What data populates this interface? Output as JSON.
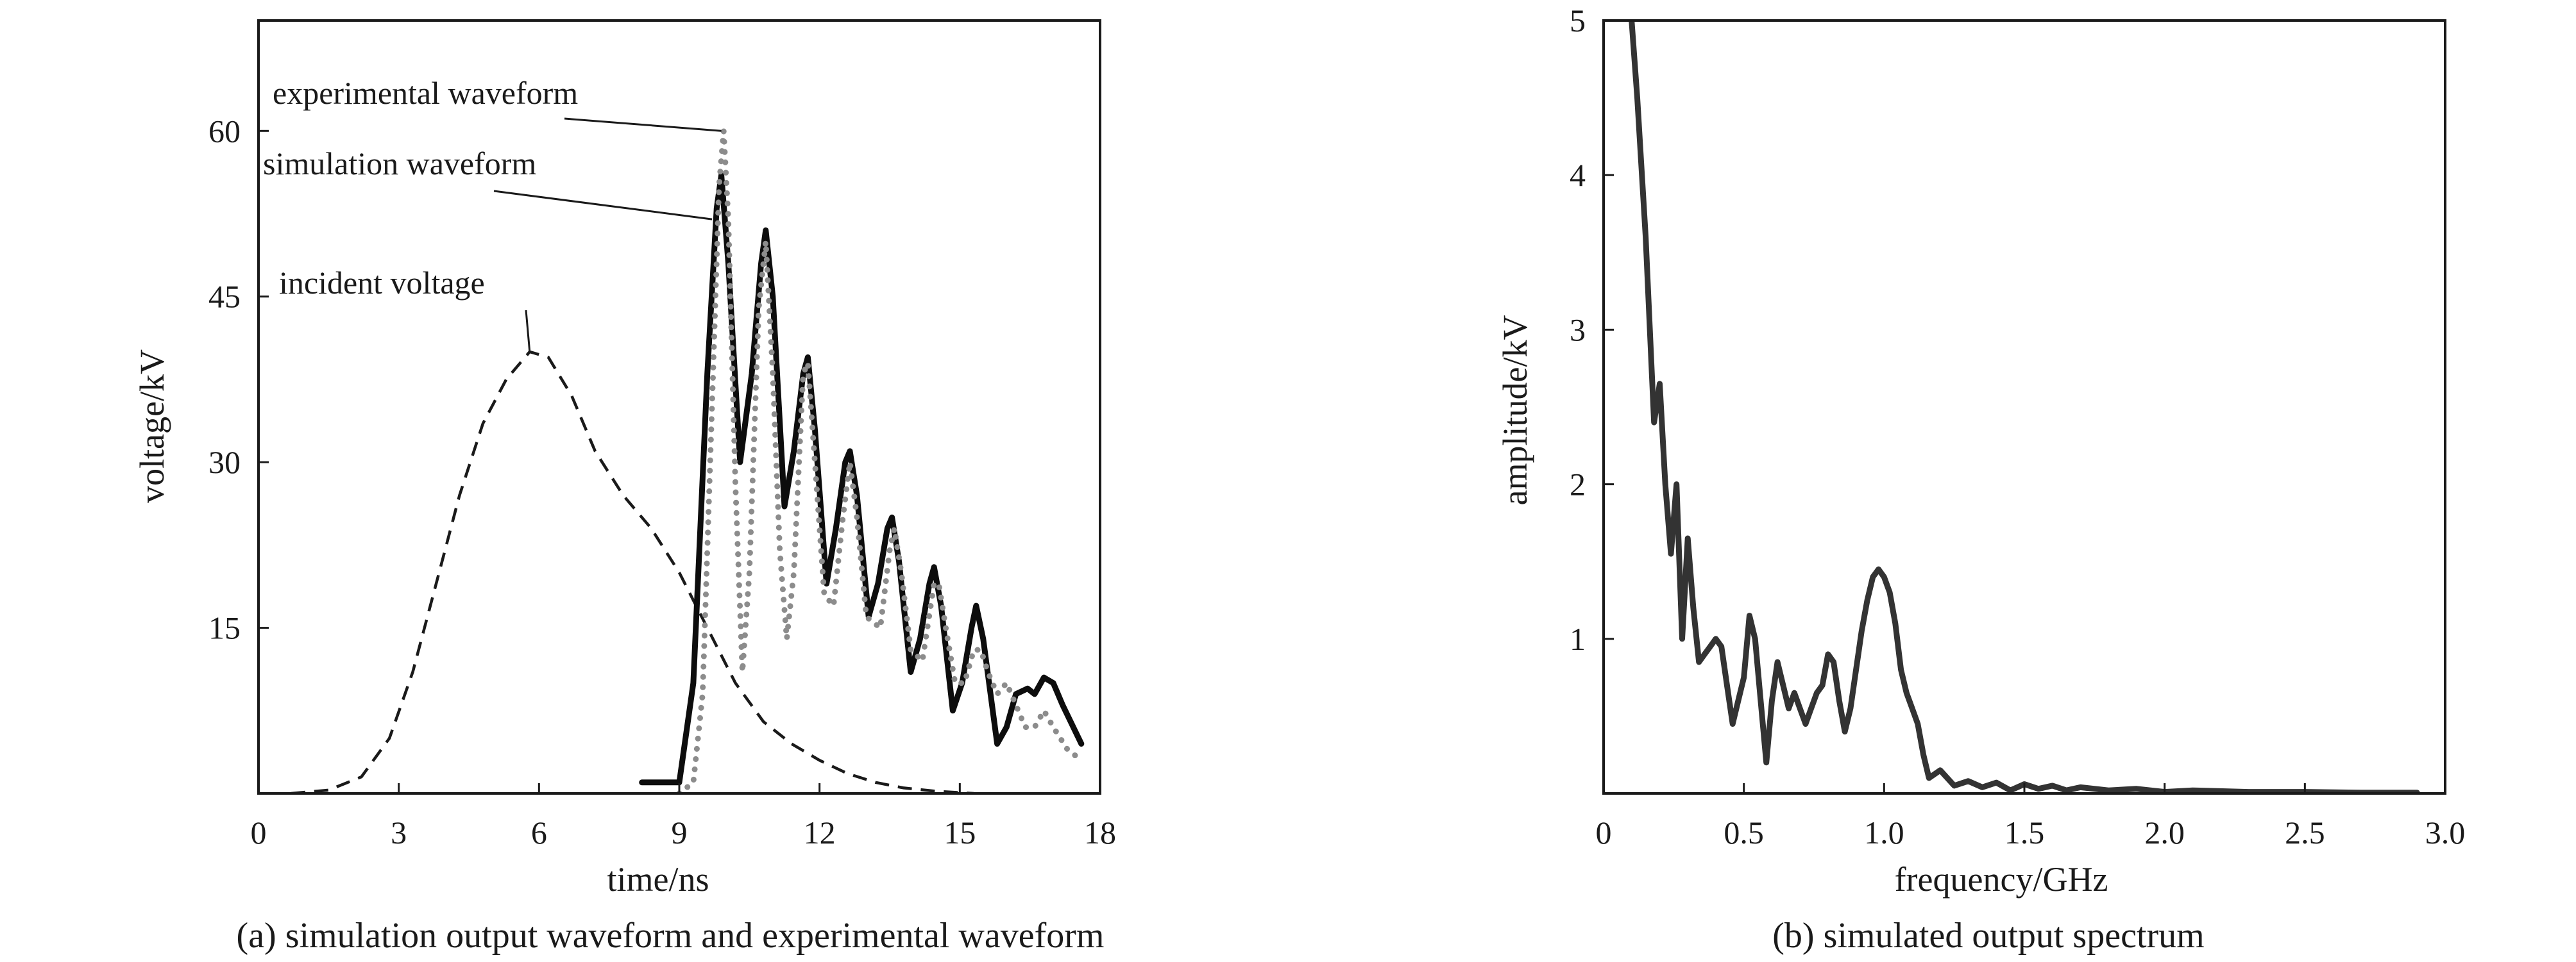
{
  "chart_data": [
    {
      "type": "line",
      "caption": "(a) simulation output waveform and experimental waveform",
      "xlabel": "time/ns",
      "ylabel": "voltage/kV",
      "xlim": [
        0,
        18
      ],
      "ylim": [
        0,
        70
      ],
      "x_ticks": [
        0,
        3,
        6,
        9,
        12,
        15,
        18
      ],
      "y_ticks": [
        15,
        30,
        45,
        60
      ],
      "x_tick_labels": [
        "0",
        "3",
        "6",
        "9",
        "12",
        "15",
        "18"
      ],
      "y_tick_labels": [
        "15",
        "30",
        "45",
        "60"
      ],
      "annotations": [
        {
          "text": "experimental waveform",
          "target_series": "experimental waveform",
          "target": [
            9.9,
            60
          ]
        },
        {
          "text": "simulation waveform",
          "target_series": "simulation waveform",
          "target": [
            9.7,
            52
          ]
        },
        {
          "text": "incident voltage",
          "target_series": "incident voltage",
          "target": [
            5.8,
            40
          ]
        }
      ],
      "series": [
        {
          "name": "incident voltage",
          "style": "dashed",
          "color": "#1a1a1a",
          "points": [
            [
              0.7,
              0
            ],
            [
              1.5,
              0.3
            ],
            [
              2.2,
              1.5
            ],
            [
              2.8,
              5
            ],
            [
              3.3,
              11
            ],
            [
              3.8,
              19
            ],
            [
              4.3,
              27
            ],
            [
              4.8,
              33.5
            ],
            [
              5.3,
              37.5
            ],
            [
              5.8,
              40
            ],
            [
              6.2,
              39.5
            ],
            [
              6.7,
              36
            ],
            [
              7.2,
              31
            ],
            [
              7.8,
              27
            ],
            [
              8.4,
              24
            ],
            [
              9.0,
              20
            ],
            [
              9.6,
              15
            ],
            [
              10.2,
              10
            ],
            [
              10.8,
              6.5
            ],
            [
              11.4,
              4.5
            ],
            [
              12.0,
              3
            ],
            [
              12.6,
              1.8
            ],
            [
              13.2,
              1
            ],
            [
              13.8,
              0.5
            ],
            [
              14.5,
              0.2
            ],
            [
              15.3,
              0
            ]
          ]
        },
        {
          "name": "simulation waveform",
          "style": "solid",
          "color": "#0d0d0d",
          "points": [
            [
              8.2,
              1
            ],
            [
              9.0,
              1
            ],
            [
              9.3,
              10
            ],
            [
              9.6,
              38
            ],
            [
              9.8,
              53
            ],
            [
              9.9,
              56
            ],
            [
              10.05,
              48
            ],
            [
              10.3,
              30
            ],
            [
              10.55,
              38
            ],
            [
              10.75,
              48
            ],
            [
              10.85,
              51
            ],
            [
              11.0,
              45
            ],
            [
              11.25,
              26
            ],
            [
              11.45,
              31
            ],
            [
              11.65,
              38
            ],
            [
              11.75,
              39.5
            ],
            [
              11.9,
              33
            ],
            [
              12.15,
              19
            ],
            [
              12.35,
              24
            ],
            [
              12.55,
              30
            ],
            [
              12.65,
              31
            ],
            [
              12.8,
              27
            ],
            [
              13.05,
              16
            ],
            [
              13.25,
              19
            ],
            [
              13.45,
              24
            ],
            [
              13.55,
              25
            ],
            [
              13.7,
              21
            ],
            [
              13.95,
              11
            ],
            [
              14.15,
              14
            ],
            [
              14.35,
              19
            ],
            [
              14.45,
              20.5
            ],
            [
              14.6,
              17
            ],
            [
              14.85,
              7.5
            ],
            [
              15.05,
              10
            ],
            [
              15.25,
              15
            ],
            [
              15.35,
              17
            ],
            [
              15.5,
              14
            ],
            [
              15.8,
              4.5
            ],
            [
              16.0,
              6
            ],
            [
              16.2,
              9
            ],
            [
              16.45,
              9.5
            ],
            [
              16.6,
              9
            ],
            [
              16.8,
              10.5
            ],
            [
              17.0,
              10
            ],
            [
              17.2,
              8
            ],
            [
              17.6,
              4.5
            ]
          ]
        },
        {
          "name": "experimental waveform",
          "style": "dotted",
          "color": "#8c8c8c",
          "points": [
            [
              9.0,
              0
            ],
            [
              9.3,
              1
            ],
            [
              9.5,
              9
            ],
            [
              9.7,
              35
            ],
            [
              9.85,
              55
            ],
            [
              9.95,
              60
            ],
            [
              10.05,
              52
            ],
            [
              10.2,
              28
            ],
            [
              10.35,
              11
            ],
            [
              10.5,
              20
            ],
            [
              10.7,
              44
            ],
            [
              10.85,
              50
            ],
            [
              11.0,
              38
            ],
            [
              11.15,
              22
            ],
            [
              11.3,
              14
            ],
            [
              11.45,
              20
            ],
            [
              11.65,
              38
            ],
            [
              11.75,
              39
            ],
            [
              11.9,
              30
            ],
            [
              12.1,
              18
            ],
            [
              12.3,
              17
            ],
            [
              12.5,
              25
            ],
            [
              12.65,
              30
            ],
            [
              12.8,
              25
            ],
            [
              13.0,
              16
            ],
            [
              13.3,
              15
            ],
            [
              13.5,
              22
            ],
            [
              13.6,
              24
            ],
            [
              13.75,
              20
            ],
            [
              13.95,
              13
            ],
            [
              14.2,
              12
            ],
            [
              14.45,
              19
            ],
            [
              14.55,
              19
            ],
            [
              14.7,
              15
            ],
            [
              14.9,
              10
            ],
            [
              15.1,
              10
            ],
            [
              15.3,
              13
            ],
            [
              15.45,
              13
            ],
            [
              15.6,
              11
            ],
            [
              15.8,
              9
            ],
            [
              16.0,
              10
            ],
            [
              16.2,
              8
            ],
            [
              16.4,
              6
            ],
            [
              16.6,
              6
            ],
            [
              16.8,
              7.5
            ],
            [
              17.0,
              6
            ],
            [
              17.3,
              4
            ],
            [
              17.6,
              3
            ]
          ]
        }
      ]
    },
    {
      "type": "line",
      "caption": "(b) simulated output spectrum",
      "xlabel": "frequency/GHz",
      "ylabel": "amplitude/kV",
      "xlim": [
        0,
        3.0
      ],
      "ylim": [
        0,
        5
      ],
      "x_ticks": [
        0,
        0.5,
        1.0,
        1.5,
        2.0,
        2.5,
        3.0
      ],
      "y_ticks": [
        1,
        2,
        3,
        4,
        5
      ],
      "x_tick_labels": [
        "0",
        "0.5",
        "1.0",
        "1.5",
        "2.0",
        "2.5",
        "3.0"
      ],
      "y_tick_labels": [
        "1",
        "2",
        "3",
        "4",
        "5"
      ],
      "series": [
        {
          "name": "simulated output spectrum",
          "style": "solid",
          "color": "#333333",
          "points": [
            [
              0.1,
              5
            ],
            [
              0.12,
              4.5
            ],
            [
              0.15,
              3.6
            ],
            [
              0.18,
              2.4
            ],
            [
              0.2,
              2.65
            ],
            [
              0.22,
              2.0
            ],
            [
              0.24,
              1.55
            ],
            [
              0.26,
              2.0
            ],
            [
              0.28,
              1.0
            ],
            [
              0.3,
              1.65
            ],
            [
              0.32,
              1.2
            ],
            [
              0.34,
              0.85
            ],
            [
              0.36,
              0.9
            ],
            [
              0.38,
              0.95
            ],
            [
              0.4,
              1.0
            ],
            [
              0.42,
              0.95
            ],
            [
              0.44,
              0.7
            ],
            [
              0.46,
              0.45
            ],
            [
              0.48,
              0.6
            ],
            [
              0.5,
              0.75
            ],
            [
              0.52,
              1.15
            ],
            [
              0.54,
              1.0
            ],
            [
              0.56,
              0.6
            ],
            [
              0.58,
              0.2
            ],
            [
              0.6,
              0.6
            ],
            [
              0.62,
              0.85
            ],
            [
              0.64,
              0.7
            ],
            [
              0.66,
              0.55
            ],
            [
              0.68,
              0.65
            ],
            [
              0.7,
              0.55
            ],
            [
              0.72,
              0.45
            ],
            [
              0.74,
              0.55
            ],
            [
              0.76,
              0.65
            ],
            [
              0.78,
              0.7
            ],
            [
              0.8,
              0.9
            ],
            [
              0.82,
              0.85
            ],
            [
              0.84,
              0.6
            ],
            [
              0.86,
              0.4
            ],
            [
              0.88,
              0.55
            ],
            [
              0.9,
              0.8
            ],
            [
              0.92,
              1.05
            ],
            [
              0.94,
              1.25
            ],
            [
              0.96,
              1.4
            ],
            [
              0.98,
              1.45
            ],
            [
              1.0,
              1.4
            ],
            [
              1.02,
              1.3
            ],
            [
              1.04,
              1.1
            ],
            [
              1.06,
              0.8
            ],
            [
              1.08,
              0.65
            ],
            [
              1.1,
              0.55
            ],
            [
              1.12,
              0.45
            ],
            [
              1.14,
              0.25
            ],
            [
              1.16,
              0.1
            ],
            [
              1.2,
              0.15
            ],
            [
              1.25,
              0.05
            ],
            [
              1.3,
              0.08
            ],
            [
              1.35,
              0.04
            ],
            [
              1.4,
              0.07
            ],
            [
              1.45,
              0.02
            ],
            [
              1.5,
              0.06
            ],
            [
              1.55,
              0.03
            ],
            [
              1.6,
              0.05
            ],
            [
              1.65,
              0.02
            ],
            [
              1.7,
              0.04
            ],
            [
              1.8,
              0.02
            ],
            [
              1.9,
              0.03
            ],
            [
              2.0,
              0.01
            ],
            [
              2.1,
              0.02
            ],
            [
              2.3,
              0.01
            ],
            [
              2.5,
              0.01
            ],
            [
              2.7,
              0.005
            ],
            [
              2.9,
              0.005
            ]
          ]
        }
      ]
    }
  ]
}
